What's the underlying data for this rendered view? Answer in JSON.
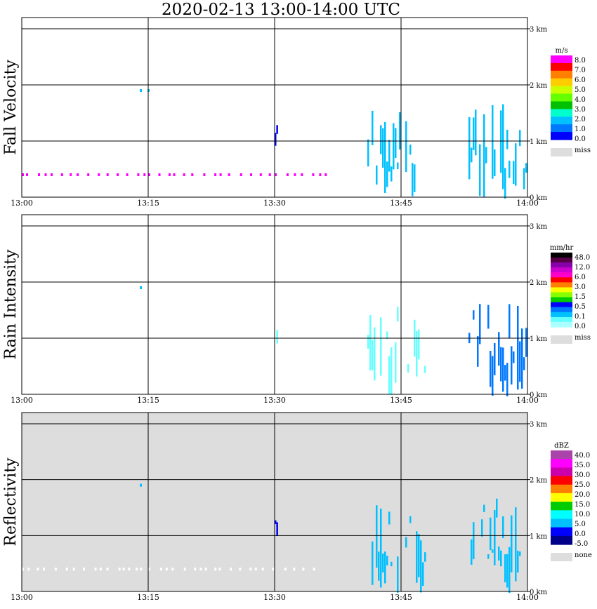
{
  "title": "2020-02-13   13:00-14:00 UTC",
  "x_ticks": [
    "13:00",
    "13:15",
    "13:30",
    "13:45",
    "14:00"
  ],
  "y_ticks": [
    "0 km",
    "1 km",
    "2 km",
    "3 km"
  ],
  "chart_data": [
    {
      "type": "heatmap",
      "ylabel": "Fall Velocity",
      "xlim": [
        "13:00",
        "14:00"
      ],
      "ylim_km": [
        0,
        3.2
      ],
      "background": "white",
      "colorbar": {
        "unit": "m/s",
        "labels": [
          "8.0",
          "7.0",
          "6.0",
          "5.0",
          "4.0",
          "3.0",
          "2.0",
          "1.0",
          "0.0"
        ],
        "colors": [
          "#ff00ff",
          "#ff0000",
          "#ff7f00",
          "#ffcc00",
          "#ccff00",
          "#66ff00",
          "#00c000",
          "#00ffcc",
          "#00c0ff",
          "#0077ff",
          "#0000ff"
        ],
        "missing_label": "miss",
        "missing_color": "#dddddd"
      },
      "echoes": [
        {
          "t": "13:00-13:15",
          "h_km": [
            0.4,
            0.4
          ],
          "color": "#ff00ff"
        },
        {
          "t": "13:15-13:30",
          "h_km": [
            0.4,
            0.4
          ],
          "color": "#ff00ff"
        },
        {
          "t": "13:30-13:36",
          "h_km": [
            0.4,
            0.4
          ],
          "color": "#ff00ff"
        },
        {
          "t": "13:14-13:15",
          "h_km": [
            1.9,
            1.9
          ],
          "color": "#00c0ff"
        },
        {
          "t": "13:30",
          "h_km": [
            0.9,
            1.3
          ],
          "color": "#0000ff"
        },
        {
          "t": "13:41-13:48",
          "h_km": [
            0.0,
            1.6
          ],
          "color": "#00c0ff"
        },
        {
          "t": "13:53-14:00",
          "h_km": [
            0.0,
            1.7
          ],
          "color": "#00c0ff"
        }
      ]
    },
    {
      "type": "heatmap",
      "ylabel": "Rain Intensity",
      "xlim": [
        "13:00",
        "14:00"
      ],
      "ylim_km": [
        0,
        3.2
      ],
      "background": "white",
      "colorbar": {
        "unit": "mm/hr",
        "labels": [
          "48.0",
          "12.0",
          "6.0",
          "3.0",
          "1.5",
          "0.5",
          "0.1",
          "0.0"
        ],
        "colors": [
          "#000000",
          "#550044",
          "#8800aa",
          "#cc00cc",
          "#ff00cc",
          "#ff0000",
          "#ff7f00",
          "#ffff00",
          "#88ff00",
          "#00cc00",
          "#0000ff",
          "#0077ff",
          "#00c0ff",
          "#66ffff",
          "#aaffff"
        ],
        "missing_label": "miss",
        "missing_color": "#dddddd"
      },
      "echoes": [
        {
          "t": "13:14-13:15",
          "h_km": [
            1.9,
            1.9
          ],
          "color": "#00c0ff"
        },
        {
          "t": "13:30",
          "h_km": [
            0.9,
            1.3
          ],
          "color": "#66ffff"
        },
        {
          "t": "13:41-13:48",
          "h_km": [
            0.0,
            1.6
          ],
          "color": "#66ffff"
        },
        {
          "t": "13:53-14:00",
          "h_km": [
            0.0,
            1.7
          ],
          "color": "#0077ff"
        }
      ]
    },
    {
      "type": "heatmap",
      "ylabel": "Reflectivity",
      "xlim": [
        "13:00",
        "14:00"
      ],
      "ylim_km": [
        0,
        3.2
      ],
      "background": "#dddddd",
      "colorbar": {
        "unit": "dBZ",
        "labels": [
          "40.0",
          "35.0",
          "30.0",
          "25.0",
          "20.0",
          "15.0",
          "10.0",
          "5.0",
          "0.0",
          "-5.0"
        ],
        "colors": [
          "#aa44aa",
          "#ff00ff",
          "#cc00aa",
          "#ff0000",
          "#ff7f00",
          "#ffff00",
          "#00cc00",
          "#00ffff",
          "#00c0ff",
          "#0000ff",
          "#000088"
        ],
        "missing_label": "none",
        "missing_color": "#dddddd"
      },
      "echoes": [
        {
          "t": "13:00-13:15",
          "h_km": [
            0.4,
            0.4
          ],
          "color": "#ffffff"
        },
        {
          "t": "13:15-13:35",
          "h_km": [
            0.4,
            0.4
          ],
          "color": "#ffffff"
        },
        {
          "t": "13:14-13:15",
          "h_km": [
            1.9,
            1.9
          ],
          "color": "#00c0ff"
        },
        {
          "t": "13:30",
          "h_km": [
            0.9,
            1.3
          ],
          "color": "#0000ff"
        },
        {
          "t": "13:41-13:48",
          "h_km": [
            0.0,
            1.6
          ],
          "color": "#00c0ff"
        },
        {
          "t": "13:53-14:00",
          "h_km": [
            0.0,
            1.7
          ],
          "color": "#00c0ff"
        }
      ]
    }
  ]
}
